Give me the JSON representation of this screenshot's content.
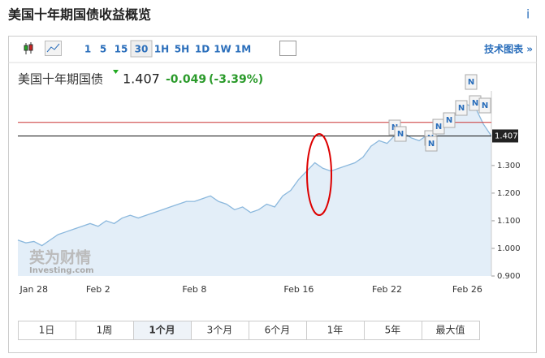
{
  "header": {
    "title": "美国十年期国债收益概览",
    "info": "i"
  },
  "toolbar": {
    "intervals": [
      "1",
      "5",
      "15",
      "30",
      "1H",
      "5H",
      "1D",
      "1W",
      "1M"
    ],
    "selected": 3,
    "link": "技术图表 »"
  },
  "quote": {
    "name": "美国十年期国债",
    "price": 1.407,
    "change": -0.049,
    "change_pct": "(-3.39%)"
  },
  "watermark": {
    "brand": "英为财情",
    "site": "Investing.com"
  },
  "ranges": {
    "items": [
      "1日",
      "1周",
      "1个月",
      "3个月",
      "6个月",
      "1年",
      "5年",
      "最大值"
    ],
    "selected": 2
  },
  "chart_data": {
    "type": "area",
    "color": "#8bb8dd",
    "fill": "#e3eef8",
    "ylim": [
      0.9,
      1.57
    ],
    "yticks": [
      {
        "value": 0.9,
        "label": "0.900"
      },
      {
        "value": 1.0,
        "label": "1.000"
      },
      {
        "value": 1.1,
        "label": "1.100"
      },
      {
        "value": 1.2,
        "label": "1.200"
      },
      {
        "value": 1.3,
        "label": "1.300"
      }
    ],
    "reference": 1.456,
    "categories": [
      null,
      null,
      "Jan 28",
      null,
      null,
      null,
      null,
      null,
      null,
      null,
      "Feb 2",
      null,
      null,
      null,
      null,
      null,
      null,
      null,
      null,
      null,
      null,
      null,
      "Feb 8",
      null,
      null,
      null,
      null,
      null,
      null,
      null,
      null,
      null,
      null,
      null,
      null,
      "Feb 16",
      null,
      null,
      null,
      null,
      null,
      null,
      null,
      null,
      null,
      null,
      "Feb 22",
      null,
      null,
      null,
      null,
      null,
      null,
      null,
      null,
      null,
      "Feb 26",
      null,
      null,
      null
    ],
    "series": [
      {
        "name": "美国十年期国债",
        "values": [
          1.03,
          1.02,
          1.025,
          1.01,
          1.03,
          1.05,
          1.06,
          1.07,
          1.08,
          1.09,
          1.08,
          1.1,
          1.09,
          1.11,
          1.12,
          1.11,
          1.12,
          1.13,
          1.14,
          1.15,
          1.16,
          1.17,
          1.17,
          1.18,
          1.19,
          1.17,
          1.16,
          1.14,
          1.15,
          1.13,
          1.14,
          1.16,
          1.15,
          1.19,
          1.21,
          1.25,
          1.28,
          1.31,
          1.29,
          1.28,
          1.29,
          1.3,
          1.31,
          1.33,
          1.37,
          1.39,
          1.38,
          1.41,
          1.42,
          1.4,
          1.39,
          1.41,
          1.43,
          1.46,
          1.48,
          1.5,
          1.52,
          1.51,
          1.45,
          1.407
        ]
      }
    ]
  }
}
